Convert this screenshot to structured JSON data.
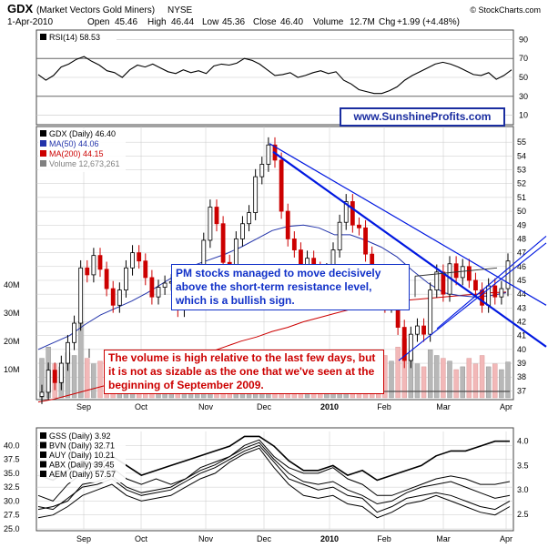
{
  "header": {
    "symbol": "GDX",
    "name": "(Market Vectors Gold Miners)",
    "exchange": "NYSE",
    "copyright": "© StockCharts.com",
    "date": "1-Apr-2010",
    "open_label": "Open",
    "open": "45.46",
    "high_label": "High",
    "high": "46.44",
    "low_label": "Low",
    "low": "45.36",
    "close_label": "Close",
    "close": "46.40",
    "volume_label": "Volume",
    "volume": "12.7M",
    "chg_label": "Chg",
    "chg": "+1.99 (+4.48%)"
  },
  "watermark": "www.SunshineProfits.com",
  "annotations": {
    "pm": "PM stocks managed to move decisively above the short-term resistance level, which is a bullish sign.",
    "volume": "The volume is high relative to the last few days, but it is not as sizable as the one that we've seen at the beginning of September 2009."
  },
  "colors": {
    "up": "#000000",
    "down": "#cc0000",
    "ma50": "#2233aa",
    "ma200": "#cc0000",
    "trendline": "#0018e0",
    "volume_up": "#b8b8b8",
    "volume_down": "#f2b8b8",
    "grid": "#c8c8c8"
  },
  "chart_data": [
    {
      "type": "line",
      "panel": "rsi",
      "series": [
        {
          "name": "RSI(14) 58.53",
          "values": [
            53,
            47,
            52,
            61,
            64,
            69,
            72,
            67,
            63,
            57,
            55,
            50,
            58,
            63,
            61,
            64,
            60,
            56,
            54,
            58,
            55,
            57,
            54,
            62,
            64,
            63,
            65,
            70,
            68,
            64,
            58,
            52,
            53,
            55,
            50,
            52,
            55,
            57,
            54,
            56,
            47,
            43,
            37,
            35,
            33,
            33,
            36,
            40,
            47,
            52,
            56,
            60,
            64,
            66,
            64,
            61,
            57,
            53,
            52,
            55,
            48,
            52,
            58
          ]
        }
      ],
      "y_ticks": [
        10,
        30,
        50,
        70,
        90
      ],
      "ylim": [
        0,
        100
      ]
    },
    {
      "type": "candlestick",
      "panel": "price",
      "legend": [
        {
          "name": "GDX (Daily) 46.40",
          "color": "#000000"
        },
        {
          "name": "MA(50) 44.06",
          "color": "#2233aa"
        },
        {
          "name": "MA(200) 44.15",
          "color": "#cc0000"
        },
        {
          "name": "Volume 12,673,261",
          "color": "#808080"
        }
      ],
      "x_labels": [
        "Sep",
        "Oct",
        "Nov",
        "Dec",
        "2010",
        "Feb",
        "Mar",
        "Apr"
      ],
      "y_ticks": [
        37,
        38,
        39,
        40,
        41,
        42,
        43,
        44,
        45,
        46,
        47,
        48,
        49,
        50,
        51,
        52,
        53,
        54,
        55
      ],
      "volume_ticks": [
        "10M",
        "20M",
        "30M",
        "40M"
      ],
      "ylim": [
        36.5,
        56
      ],
      "closes": [
        36.9,
        38.5,
        37.6,
        39,
        40.5,
        41.9,
        45.9,
        45.4,
        46.8,
        45.8,
        44.4,
        43.2,
        44.3,
        45.9,
        47,
        46.4,
        45.2,
        43.8,
        44.5,
        44.8,
        44.9,
        42.9,
        43.4,
        45.3,
        45.4,
        47.9,
        50.3,
        49.1,
        46.3,
        46.1,
        48,
        49.1,
        49.9,
        52.5,
        53.4,
        54.8,
        53.7,
        50,
        48,
        47.2,
        45.6,
        46.6,
        45.8,
        44.8,
        45.7,
        47.2,
        49.2,
        50.7,
        49,
        48.8,
        46.9,
        45.3,
        45.1,
        43.2,
        43.8,
        41.6,
        39.2,
        41.1,
        41.7,
        41.1,
        44.3,
        45.6,
        44,
        46.2,
        45.2,
        46,
        45,
        44.3,
        43.2,
        44.6,
        43.8,
        44.4,
        46.4
      ],
      "volumes": [
        14,
        18,
        12,
        11,
        16,
        15,
        27,
        14,
        12,
        13,
        13,
        10,
        11,
        14,
        11,
        10,
        9,
        12,
        11,
        10,
        9,
        13,
        11,
        10,
        11,
        17,
        15,
        12,
        14,
        11,
        10,
        11,
        12,
        14,
        16,
        15,
        13,
        15,
        11,
        10,
        12,
        10,
        9,
        11,
        10,
        11,
        13,
        15,
        12,
        11,
        13,
        12,
        10,
        15,
        13,
        18,
        21,
        16,
        12,
        11,
        17,
        15,
        14,
        13,
        10,
        11,
        14,
        12,
        15,
        11,
        12,
        10,
        12.7
      ],
      "ma50": [
        40,
        40.5,
        41,
        41.8,
        42.5,
        43,
        43.5,
        44.1,
        44.8,
        45.5,
        46.1,
        46.5,
        46.9,
        47.4,
        48,
        48.6,
        48.9,
        49,
        48.8,
        48.3,
        48.3,
        47.9,
        47.4,
        46.7,
        45.7,
        44.8,
        44.1,
        43.9,
        43.8,
        43.9,
        44.1
      ],
      "ma200": [
        36.2,
        36.4,
        36.7,
        37,
        37.3,
        37.6,
        37.9,
        38.2,
        38.6,
        39,
        39.4,
        39.8,
        40.2,
        40.6,
        40.9,
        41.3,
        41.6,
        42,
        42.3,
        42.6,
        42.9,
        43.2,
        43.3,
        43.5,
        43.6,
        43.7,
        43.8,
        43.9,
        44,
        44.1,
        44.15
      ],
      "annotations": [
        "PM stocks managed to move decisively above the short-term resistance level, which is a bullish sign.",
        "The volume is high relative to the last few days, but it is not as sizable as the one that we've seen at the beginning of September 2009."
      ]
    },
    {
      "type": "line",
      "panel": "comparison",
      "series": [
        {
          "name": "GSS (Daily) 3.92",
          "values": [
            3.3,
            3.2,
            3.4,
            3.6,
            3.5,
            3.7,
            3.5,
            3.3,
            3.4,
            3.5,
            3.6,
            3.7,
            3.8,
            3.9,
            4.1,
            4.1,
            3.9,
            3.6,
            3.4,
            3.4,
            3.5,
            3.3,
            3.4,
            3.2,
            3.3,
            3.4,
            3.5,
            3.7,
            3.8,
            3.8,
            3.9,
            4.0,
            4.0
          ]
        },
        {
          "name": "BVN (Daily) 32.71",
          "values": [
            31,
            30,
            33,
            35,
            35.5,
            36,
            34,
            33,
            34,
            33,
            34,
            36,
            37,
            38,
            40,
            41,
            38,
            36,
            35,
            35,
            36,
            34,
            33,
            31,
            31,
            32,
            33,
            34,
            34.5,
            34,
            33,
            33,
            33.5
          ]
        },
        {
          "name": "AUY (Daily) 10.21",
          "values": [
            29,
            28.5,
            30.5,
            32.5,
            33,
            34,
            32,
            31,
            31.5,
            32,
            33.5,
            35,
            36,
            37.5,
            39,
            40,
            37,
            34,
            33,
            32,
            32.5,
            31,
            30.5,
            28,
            29,
            30.5,
            31,
            31.5,
            31,
            30,
            29,
            28.5,
            30
          ]
        },
        {
          "name": "ABX (Daily) 39.45",
          "values": [
            27,
            27.5,
            29,
            31,
            32,
            33,
            31,
            30,
            30.5,
            31,
            32.5,
            34,
            35,
            37,
            38.5,
            39.5,
            36,
            33,
            31,
            30.5,
            31,
            29.5,
            29,
            27,
            28,
            29.5,
            30,
            31,
            30,
            29,
            28,
            27.5,
            29
          ]
        },
        {
          "name": "AEM (Daily) 57.57",
          "values": [
            28.5,
            29,
            30,
            33,
            33.5,
            34.5,
            32.5,
            31.5,
            32,
            32.5,
            34,
            35.5,
            36.5,
            38,
            39.5,
            40.5,
            37.5,
            35,
            33.5,
            33,
            33.5,
            32,
            31,
            29.5,
            30,
            31.5,
            32.5,
            33,
            33.5,
            32.5,
            31.5,
            30.5,
            31
          ]
        }
      ],
      "x_labels": [
        "Sep",
        "Oct",
        "Nov",
        "Dec",
        "2010",
        "Feb",
        "Mar",
        "Apr"
      ],
      "y_ticks_left": [
        25.0,
        27.5,
        30.0,
        32.5,
        35.0,
        37.5,
        40.0
      ],
      "y_ticks_right": [
        2.5,
        3.0,
        3.5,
        4.0
      ],
      "ylim": [
        25,
        42.5
      ]
    }
  ]
}
